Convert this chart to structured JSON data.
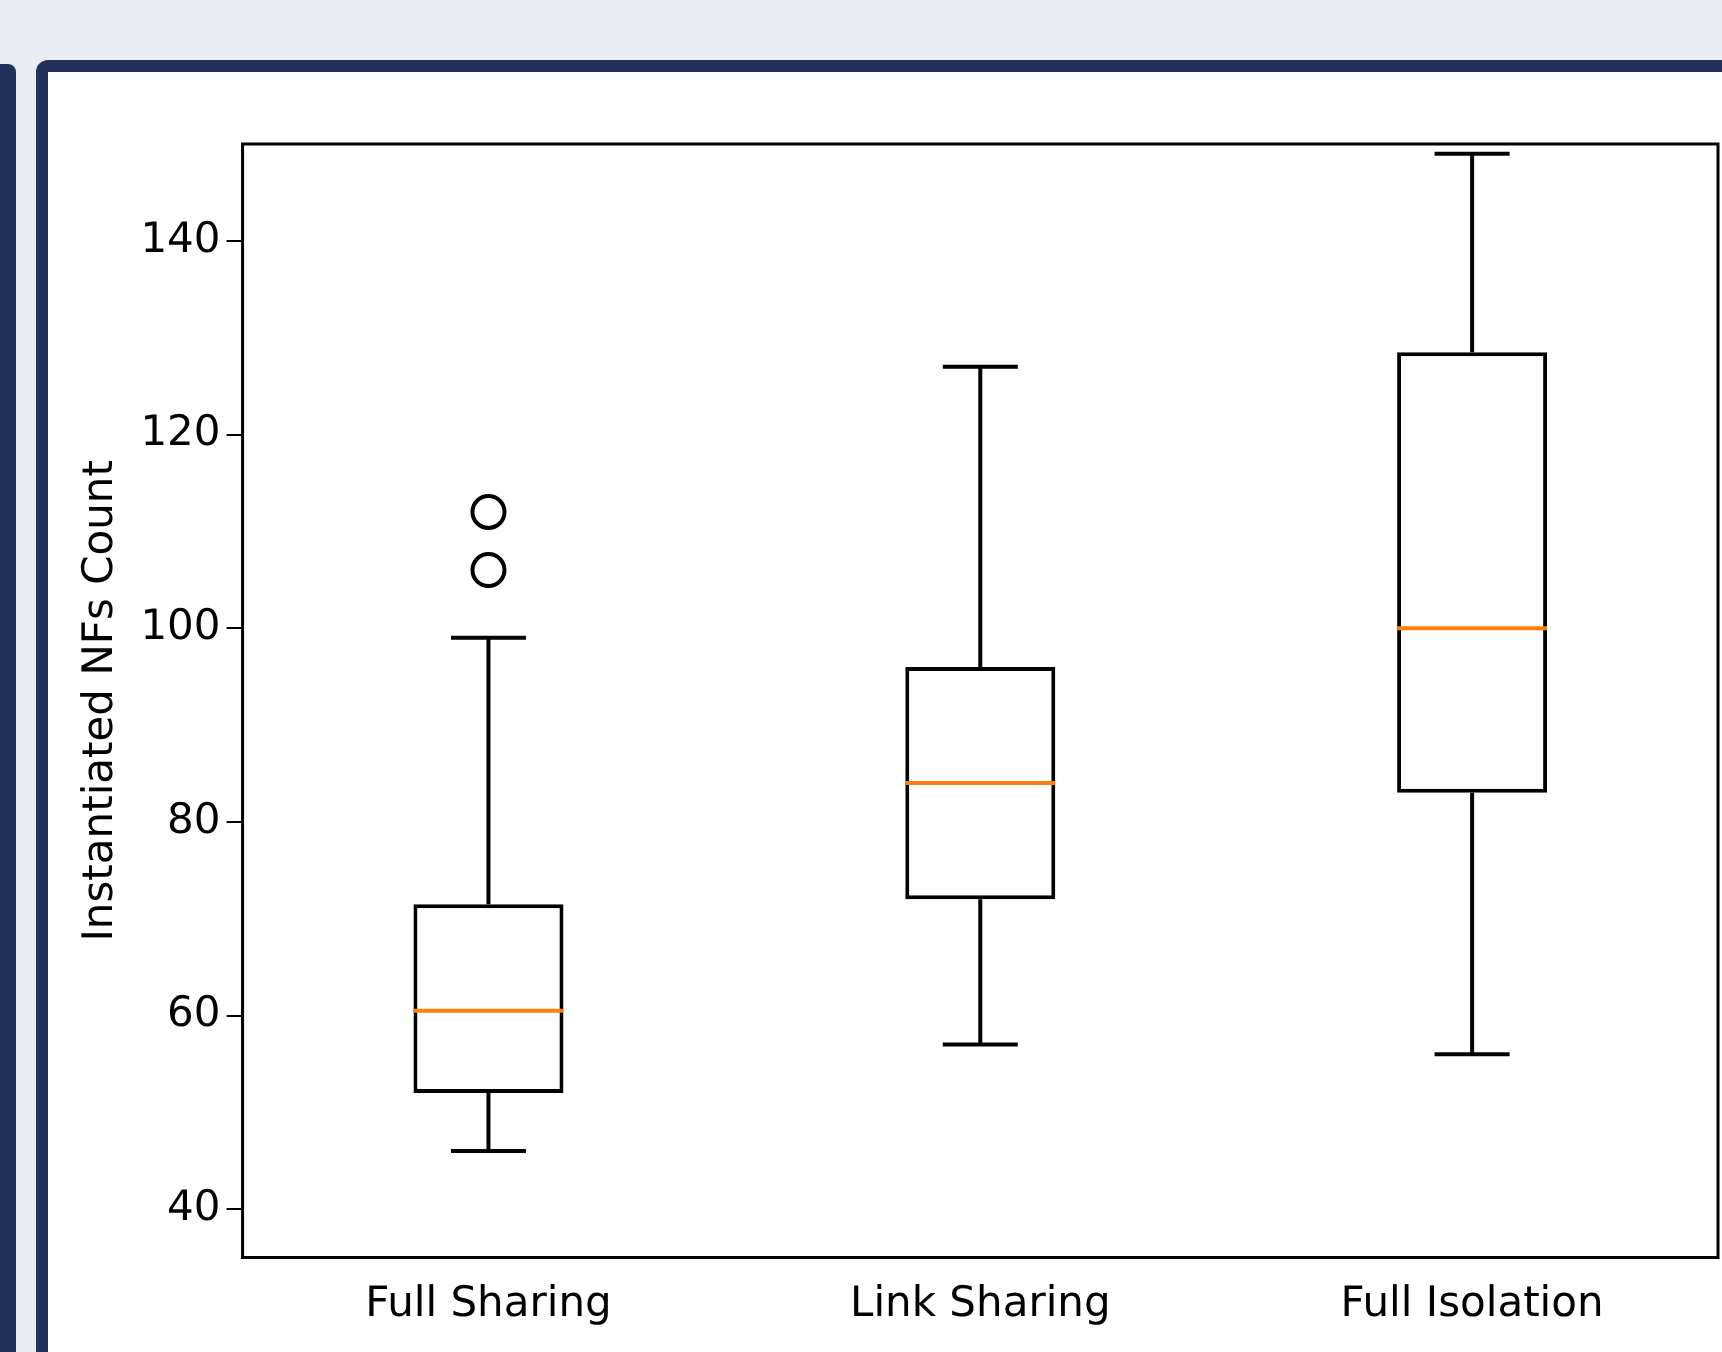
{
  "chart_data": {
    "type": "box",
    "ylabel": "Instantiated NFs Count",
    "categories": [
      "Full Sharing",
      "Link Sharing",
      "Full Isolation"
    ],
    "boxes": [
      {
        "low": 46,
        "q1": 52,
        "median": 60.5,
        "q3": 71.5,
        "high": 99,
        "outliers": [
          106,
          112
        ]
      },
      {
        "low": 57,
        "q1": 72,
        "median": 84,
        "q3": 96,
        "high": 127
      },
      {
        "low": 56,
        "q1": 83,
        "median": 100,
        "q3": 128.5,
        "high": 149
      }
    ],
    "ylim": [
      35,
      150
    ],
    "yticks": [
      40,
      60,
      80,
      100,
      120,
      140
    ],
    "grid": false
  }
}
